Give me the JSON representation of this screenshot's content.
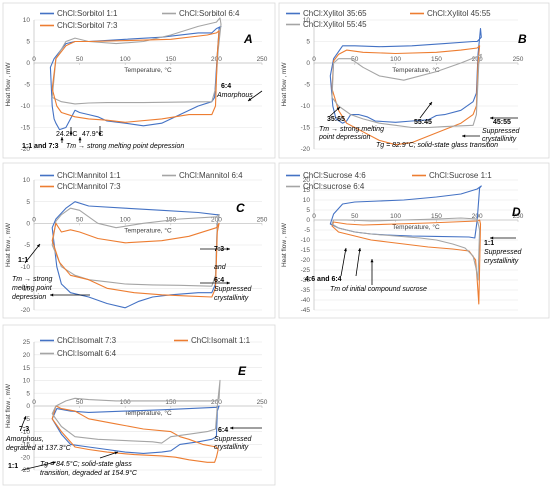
{
  "colors": {
    "blue": "#4472C4",
    "orange": "#ED7D31",
    "gray": "#A5A5A5"
  },
  "chart_data": [
    {
      "id": "A",
      "type": "line",
      "panel_label": "A",
      "xlabel": "Temperature, °C",
      "ylabel": "Heat flow , mW",
      "xlim": [
        0,
        250
      ],
      "ylim": [
        -20,
        10
      ],
      "xticks": [
        "0",
        "50",
        "100",
        "150",
        "200",
        "250"
      ],
      "yticks": [
        "10",
        "5",
        "0",
        "-5",
        "-10",
        "-15",
        "-20"
      ],
      "series": [
        {
          "name": "ChCl:Sorbitol 1:1",
          "color": "blue"
        },
        {
          "name": "ChCl:Sorbitol 6:4",
          "color": "gray"
        },
        {
          "name": "ChCl:Sorbitol 7:3",
          "color": "orange"
        }
      ],
      "annotations": [
        {
          "text": "6:4",
          "bold": true
        },
        {
          "text": "Amorphous",
          "italic": true
        },
        {
          "text": "24.2°C"
        },
        {
          "text": "47.9°C"
        },
        {
          "text": "1:1 and 7:3",
          "bold": true
        },
        {
          "text": "Tm → strong melting point depression",
          "italic": true
        }
      ]
    },
    {
      "id": "B",
      "type": "line",
      "panel_label": "B",
      "xlabel": "Temperature, °C",
      "ylabel": "Heat flow , mW",
      "xlim": [
        0,
        250
      ],
      "ylim": [
        -20,
        10
      ],
      "xticks": [
        "0",
        "50",
        "100",
        "150",
        "200",
        "250"
      ],
      "yticks": [
        "10",
        "5",
        "0",
        "-5",
        "-10",
        "-15",
        "-20"
      ],
      "series": [
        {
          "name": "ChCl:Xylitol 35:65",
          "color": "blue"
        },
        {
          "name": "ChCl:Xylitol 45:55",
          "color": "orange"
        },
        {
          "name": "ChCl:Xylitol 55:45",
          "color": "gray"
        }
      ],
      "annotations": [
        {
          "text": "45:55",
          "bold": true
        },
        {
          "text": "Suppressed",
          "italic": true
        },
        {
          "text": "crystallinity",
          "italic": true
        },
        {
          "text": "35:65",
          "bold": true
        },
        {
          "text": "Tm → strong melting",
          "italic": true
        },
        {
          "text": "point depression",
          "italic": true
        },
        {
          "text": "55:45",
          "bold": true
        },
        {
          "text": "Tg = 82.9°C; solid-state glass transition",
          "italic": true
        }
      ]
    },
    {
      "id": "C",
      "type": "line",
      "panel_label": "C",
      "xlabel": "Temperature, °C",
      "ylabel": "Heat flow , mW",
      "xlim": [
        0,
        250
      ],
      "ylim": [
        -20,
        10
      ],
      "xticks": [
        "0",
        "50",
        "100",
        "150",
        "200",
        "250"
      ],
      "yticks": [
        "10",
        "5",
        "0",
        "-5",
        "-10",
        "-15",
        "-20"
      ],
      "series": [
        {
          "name": "ChCl:Mannitol 1:1",
          "color": "blue"
        },
        {
          "name": "ChCl:Mannitol 6:4",
          "color": "gray"
        },
        {
          "name": "ChCl:Mannitol 7:3",
          "color": "orange"
        }
      ],
      "annotations": [
        {
          "text": "7:3",
          "bold": true
        },
        {
          "text": "and",
          "italic": true
        },
        {
          "text": "6:4",
          "bold": true
        },
        {
          "text": "Suppressed",
          "italic": true
        },
        {
          "text": "crystallinity",
          "italic": true
        },
        {
          "text": "1:1",
          "bold": true
        },
        {
          "text": "Tm → strong",
          "italic": true
        },
        {
          "text": "melting point",
          "italic": true
        },
        {
          "text": "depression",
          "italic": true
        }
      ]
    },
    {
      "id": "D",
      "type": "line",
      "panel_label": "D",
      "xlabel": "Temperature, °C",
      "ylabel": "Heat flow , mW",
      "xlim": [
        0,
        250
      ],
      "ylim": [
        -45,
        20
      ],
      "xticks": [
        "0",
        "50",
        "100",
        "150",
        "200",
        "250"
      ],
      "yticks": [
        "20",
        "15",
        "10",
        "5",
        "0",
        "-5",
        "-10",
        "-15",
        "-20",
        "-25",
        "-30",
        "-35",
        "-40",
        "-45"
      ],
      "series": [
        {
          "name": "ChCl:Sucrose 4:6",
          "color": "blue"
        },
        {
          "name": "ChCl:Sucrose 1:1",
          "color": "orange"
        },
        {
          "name": "ChCl:sucrose 6:4",
          "color": "gray"
        }
      ],
      "annotations": [
        {
          "text": "1:1",
          "bold": true
        },
        {
          "text": "Suppressed",
          "italic": true
        },
        {
          "text": "crystallinity",
          "italic": true
        },
        {
          "text": "4:6 and 6:4",
          "bold": true
        },
        {
          "text": "Tm of initial compound sucrose",
          "italic": true
        }
      ]
    },
    {
      "id": "E",
      "type": "line",
      "panel_label": "E",
      "xlabel": "Temperature, °C",
      "ylabel": "Heat flow , mW",
      "xlim": [
        0,
        250
      ],
      "ylim": [
        -25,
        25
      ],
      "xticks": [
        "0",
        "50",
        "100",
        "150",
        "200",
        "250"
      ],
      "yticks": [
        "25",
        "20",
        "15",
        "10",
        "5",
        "0",
        "-5",
        "-10",
        "-15",
        "-20",
        "-25"
      ],
      "series": [
        {
          "name": "ChCl:Isomalt 7:3",
          "color": "blue"
        },
        {
          "name": "ChCl:Isomalt 1:1",
          "color": "orange"
        },
        {
          "name": "ChCl:Isomalt 6:4",
          "color": "gray"
        }
      ],
      "annotations": [
        {
          "text": "6:4",
          "bold": true
        },
        {
          "text": "Suppressed",
          "italic": true
        },
        {
          "text": "crystallinity",
          "italic": true
        },
        {
          "text": "7:3",
          "bold": true
        },
        {
          "text": "Amorphous,",
          "italic": true
        },
        {
          "text": "degraded at 137.3°C",
          "italic": true
        },
        {
          "text": "1:1",
          "bold": true
        },
        {
          "text": "Tg = 84.5°C; solid-state glass",
          "italic": true
        },
        {
          "text": "transition, degraded at 154.9°C",
          "italic": true
        }
      ]
    }
  ]
}
